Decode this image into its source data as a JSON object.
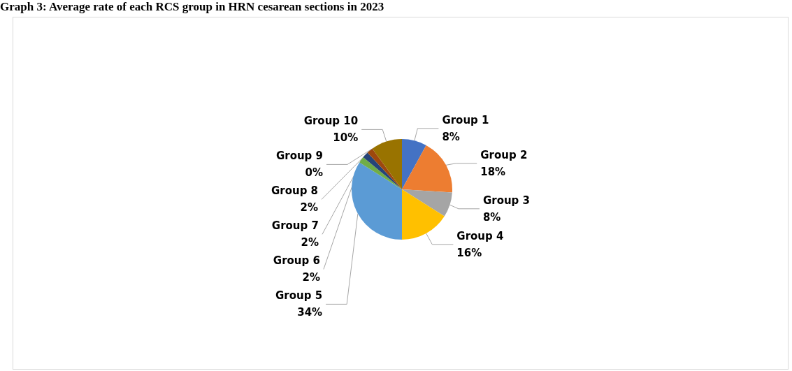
{
  "chart_data": {
    "type": "pie",
    "title": "Graph 3: Average rate of each RCS group in HRN cesarean sections in 2023",
    "categories": [
      "Group 1",
      "Group 2",
      "Group 3",
      "Group 4",
      "Group 5",
      "Group 6",
      "Group 7",
      "Group 8",
      "Group 9",
      "Group 10"
    ],
    "values": [
      8,
      18,
      8,
      16,
      34,
      2,
      2,
      2,
      0,
      10
    ],
    "value_labels": [
      "8%",
      "18%",
      "8%",
      "16%",
      "34%",
      "2%",
      "2%",
      "2%",
      "0%",
      "10%"
    ],
    "colors": [
      "#4472c4",
      "#ed7d31",
      "#a5a5a5",
      "#ffc000",
      "#5b9bd5",
      "#70ad47",
      "#264478",
      "#9e480e",
      "#636363",
      "#997300"
    ]
  }
}
